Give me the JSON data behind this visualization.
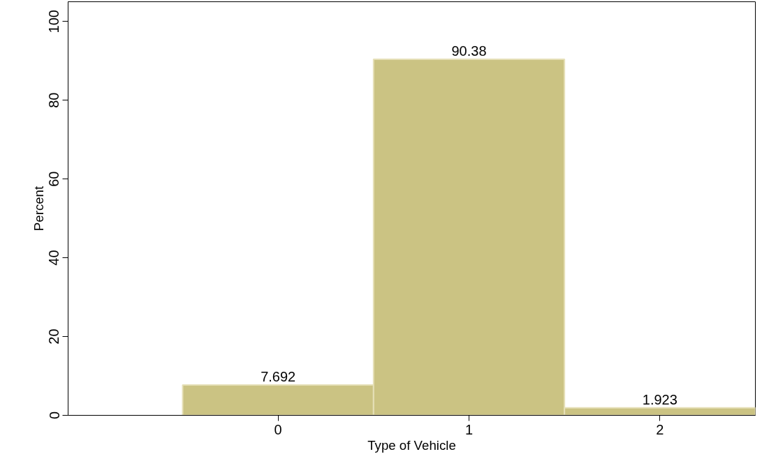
{
  "chart_data": {
    "type": "histogram",
    "xlabel": "Type of Vehicle",
    "ylabel": "Percent",
    "bins": [
      -0.5,
      0.5,
      1.5,
      2.5
    ],
    "values": [
      7.692,
      90.38,
      1.923
    ],
    "color": "#cbc383",
    "data_labels": true,
    "xlim": [
      -1.1,
      2.5
    ],
    "xticks": [
      0,
      1,
      2
    ],
    "ylim": [
      0,
      105
    ],
    "yticks": [
      0,
      20,
      40,
      60,
      80,
      100
    ],
    "grid": false
  }
}
